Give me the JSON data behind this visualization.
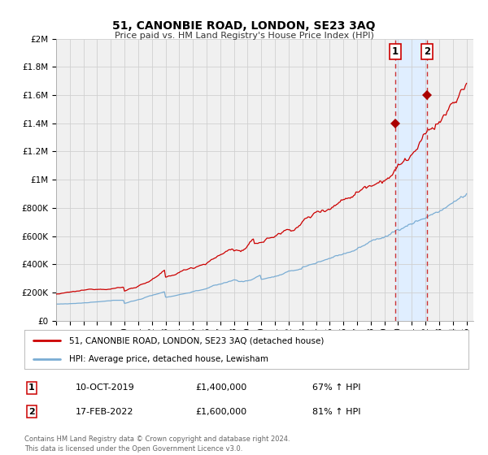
{
  "title": "51, CANONBIE ROAD, LONDON, SE23 3AQ",
  "subtitle": "Price paid vs. HM Land Registry's House Price Index (HPI)",
  "ylim": [
    0,
    2000000
  ],
  "xlim_start": 1995.0,
  "xlim_end": 2025.5,
  "yticks": [
    0,
    200000,
    400000,
    600000,
    800000,
    1000000,
    1200000,
    1400000,
    1600000,
    1800000,
    2000000
  ],
  "ytick_labels": [
    "£0",
    "£200K",
    "£400K",
    "£600K",
    "£800K",
    "£1M",
    "£1.2M",
    "£1.4M",
    "£1.6M",
    "£1.8M",
    "£2M"
  ],
  "xticks": [
    1995,
    1996,
    1997,
    1998,
    1999,
    2000,
    2001,
    2002,
    2003,
    2004,
    2005,
    2006,
    2007,
    2008,
    2009,
    2010,
    2011,
    2012,
    2013,
    2014,
    2015,
    2016,
    2017,
    2018,
    2019,
    2020,
    2021,
    2022,
    2023,
    2024,
    2025
  ],
  "marker1_x": 2019.78,
  "marker1_y": 1400000,
  "marker2_x": 2022.12,
  "marker2_y": 1600000,
  "vline1_x": 2019.78,
  "vline2_x": 2022.12,
  "shade_start": 2019.78,
  "shade_end": 2022.12,
  "line1_color": "#cc0000",
  "line2_color": "#7aadd4",
  "marker_color": "#aa0000",
  "shade_color": "#e0eeff",
  "vline_color": "#cc3333",
  "grid_color": "#d0d0d0",
  "legend1_label": "51, CANONBIE ROAD, LONDON, SE23 3AQ (detached house)",
  "legend2_label": "HPI: Average price, detached house, Lewisham",
  "table_row1": [
    "1",
    "10-OCT-2019",
    "£1,400,000",
    "67% ↑ HPI"
  ],
  "table_row2": [
    "2",
    "17-FEB-2022",
    "£1,600,000",
    "81% ↑ HPI"
  ],
  "footer": "Contains HM Land Registry data © Crown copyright and database right 2024.\nThis data is licensed under the Open Government Licence v3.0.",
  "background_color": "#ffffff",
  "plot_bg_color": "#f0f0f0"
}
